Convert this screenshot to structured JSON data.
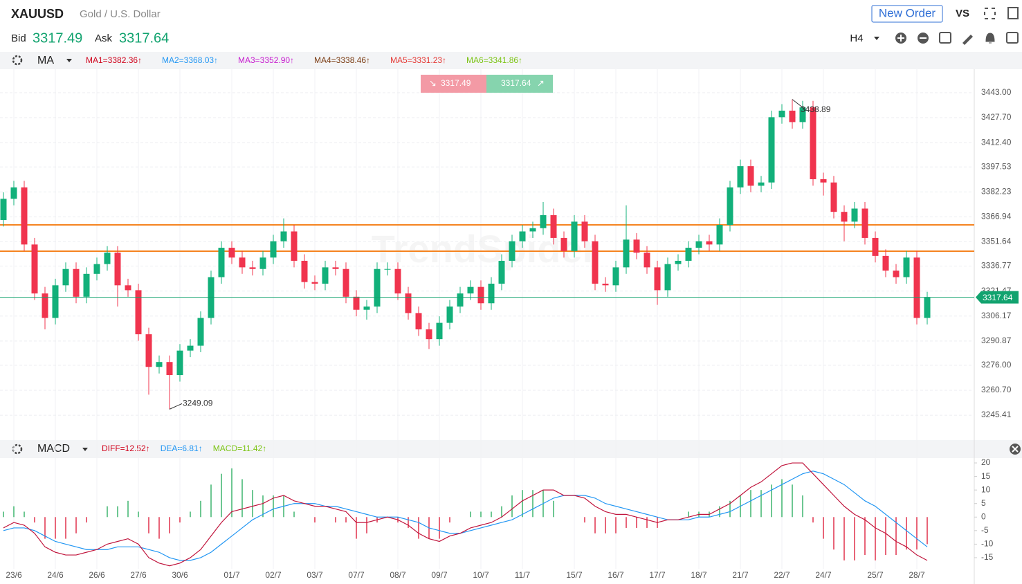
{
  "header": {
    "symbol": "XAUUSD",
    "name": "Gold / U.S. Dollar",
    "bid_label": "Bid",
    "ask_label": "Ask",
    "new_order": "New Order",
    "vs": "VS",
    "timeframe": "H4"
  },
  "chart_data": {
    "type": "candlestick",
    "watermark": "TrendSpider",
    "bid": 3317.49,
    "ask": 3317.64,
    "indicator": "MA",
    "ma_labels": [
      {
        "text": "MA1=3382.36↑",
        "color": "#d0021b"
      },
      {
        "text": "MA2=3368.03↑",
        "color": "#2196f3"
      },
      {
        "text": "MA3=3352.90↑",
        "color": "#c71ccf"
      },
      {
        "text": "MA4=3338.46↑",
        "color": "#7a3b12"
      },
      {
        "text": "MA5=3331.23↑",
        "color": "#e53935"
      },
      {
        "text": "MA6=3341.86↑",
        "color": "#7cc416"
      }
    ],
    "categories": [
      null,
      "23/6",
      null,
      null,
      null,
      "24/6",
      null,
      null,
      null,
      "26/6",
      null,
      null,
      null,
      "27/6",
      null,
      null,
      null,
      "30/6",
      null,
      null,
      null,
      null,
      "01/7",
      null,
      null,
      null,
      "02/7",
      null,
      null,
      null,
      "03/7",
      null,
      null,
      null,
      "07/7",
      null,
      null,
      null,
      "08/7",
      null,
      null,
      null,
      "09/7",
      null,
      null,
      null,
      "10/7",
      null,
      null,
      null,
      "11/7",
      null,
      null,
      null,
      null,
      "15/7",
      null,
      null,
      null,
      "16/7",
      null,
      null,
      null,
      "17/7",
      null,
      null,
      null,
      "18/7",
      null,
      null,
      null,
      "21/7",
      null,
      null,
      null,
      "22/7",
      null,
      null,
      null,
      "24/7",
      null,
      null,
      null,
      null,
      "25/7",
      null,
      null,
      null,
      "28/7",
      null
    ],
    "candles": {
      "open": [
        3365,
        3378,
        3385,
        3350,
        3320,
        3305,
        3325,
        3335,
        3318,
        3332,
        3338,
        3345,
        3325,
        3322,
        3295,
        3275,
        3278,
        3270,
        3285,
        3288,
        3305,
        3330,
        3348,
        3342,
        3336,
        3335,
        3342,
        3352,
        3358,
        3340,
        3327,
        3326,
        3336,
        3335,
        3318,
        3310,
        3312,
        3335,
        3335,
        3320,
        3308,
        3298,
        3292,
        3302,
        3312,
        3320,
        3324,
        3314,
        3326,
        3340,
        3352,
        3358,
        3360,
        3368,
        3354,
        3346,
        3364,
        3352,
        3326,
        3325,
        3336,
        3353,
        3345,
        3336,
        3322,
        3338,
        3340,
        3348,
        3352,
        3350,
        3362,
        3385,
        3398,
        3386,
        3388,
        3428,
        3432,
        3425,
        3434,
        3390,
        3388,
        3370,
        3364,
        3372,
        3354,
        3343,
        3334,
        3330,
        3342,
        3305
      ],
      "high": [
        3382,
        3389,
        3389,
        3354,
        3324,
        3329,
        3339,
        3339,
        3336,
        3342,
        3349,
        3349,
        3329,
        3326,
        3299,
        3282,
        3282,
        3289,
        3292,
        3309,
        3334,
        3352,
        3352,
        3346,
        3340,
        3346,
        3356,
        3366,
        3362,
        3344,
        3331,
        3340,
        3340,
        3339,
        3322,
        3316,
        3339,
        3339,
        3339,
        3324,
        3312,
        3302,
        3306,
        3316,
        3324,
        3328,
        3328,
        3330,
        3344,
        3356,
        3362,
        3364,
        3376,
        3372,
        3358,
        3368,
        3368,
        3356,
        3330,
        3340,
        3374,
        3357,
        3349,
        3340,
        3342,
        3344,
        3352,
        3356,
        3356,
        3366,
        3389,
        3402,
        3402,
        3392,
        3432,
        3436,
        3438.89,
        3438,
        3438,
        3394,
        3392,
        3374,
        3376,
        3376,
        3358,
        3347,
        3338,
        3346,
        3346,
        3321
      ],
      "low": [
        3361,
        3374,
        3346,
        3316,
        3298,
        3301,
        3321,
        3314,
        3314,
        3328,
        3334,
        3312,
        3318,
        3291,
        3258,
        3271,
        3249.09,
        3266,
        3281,
        3284,
        3301,
        3326,
        3338,
        3332,
        3331,
        3331,
        3338,
        3348,
        3336,
        3323,
        3322,
        3322,
        3331,
        3314,
        3306,
        3304,
        3308,
        3331,
        3316,
        3304,
        3294,
        3286,
        3288,
        3298,
        3308,
        3316,
        3310,
        3310,
        3322,
        3336,
        3348,
        3354,
        3356,
        3350,
        3342,
        3342,
        3348,
        3322,
        3321,
        3321,
        3332,
        3341,
        3332,
        3313,
        3318,
        3334,
        3336,
        3344,
        3346,
        3346,
        3358,
        3381,
        3382,
        3382,
        3384,
        3424,
        3421,
        3421,
        3386,
        3380,
        3366,
        3352,
        3360,
        3350,
        3339,
        3330,
        3326,
        3326,
        3301,
        3301
      ],
      "close": [
        3378,
        3385,
        3350,
        3320,
        3305,
        3325,
        3335,
        3318,
        3332,
        3338,
        3345,
        3325,
        3322,
        3295,
        3275,
        3278,
        3270,
        3285,
        3288,
        3305,
        3330,
        3348,
        3342,
        3336,
        3335,
        3342,
        3352,
        3358,
        3340,
        3327,
        3326,
        3336,
        3335,
        3318,
        3310,
        3312,
        3335,
        3335,
        3320,
        3308,
        3298,
        3292,
        3302,
        3312,
        3320,
        3324,
        3314,
        3326,
        3340,
        3352,
        3358,
        3360,
        3368,
        3354,
        3346,
        3364,
        3352,
        3326,
        3325,
        3336,
        3353,
        3345,
        3336,
        3322,
        3338,
        3340,
        3348,
        3352,
        3350,
        3362,
        3385,
        3398,
        3386,
        3388,
        3428,
        3432,
        3425,
        3434,
        3390,
        3388,
        3370,
        3364,
        3372,
        3354,
        3343,
        3334,
        3330,
        3342,
        3305,
        3317.64
      ]
    },
    "up_color": "#12b07a",
    "down_color": "#f0344e",
    "price_line_color": "#12a36f",
    "ylim": [
      3230.6,
      3457.4
    ],
    "yticks": [
      {
        "value": 3443,
        "label": "3443.00"
      },
      {
        "value": 3427.7,
        "label": "3427.70"
      },
      {
        "value": 3412.4,
        "label": "3412.40"
      },
      {
        "value": 3397.53,
        "label": "3397.53"
      },
      {
        "value": 3382.23,
        "label": "3382.23"
      },
      {
        "value": 3366.94,
        "label": "3366.94"
      },
      {
        "value": 3351.64,
        "label": "3351.64"
      },
      {
        "value": 3336.77,
        "label": "3336.77"
      },
      {
        "value": 3321.47,
        "label": "3321.47"
      },
      {
        "value": 3306.17,
        "label": "3306.17"
      },
      {
        "value": 3290.87,
        "label": "3290.87"
      },
      {
        "value": 3276,
        "label": "3276.00"
      },
      {
        "value": 3260.7,
        "label": "3260.70"
      },
      {
        "value": 3245.41,
        "label": "3245.41"
      }
    ],
    "levels": [
      3362,
      3345.9
    ],
    "level_color": "#f5831f",
    "grid": true
  },
  "macd": {
    "type": "macd",
    "name": "MACD",
    "labels": [
      {
        "text": "DIFF=12.52↑",
        "color": "#d0021b"
      },
      {
        "text": "DEA=6.81↑",
        "color": "#2196f3"
      },
      {
        "text": "MACD=11.42↑",
        "color": "#7cc416"
      }
    ],
    "diff": {
      "color": "#c0143c",
      "values": [
        -4,
        -2,
        -3,
        -6,
        -11,
        -13,
        -14,
        -14,
        -13,
        -12,
        -10,
        -9,
        -8,
        -10,
        -15,
        -17,
        -18,
        -17,
        -15,
        -12,
        -7,
        -2,
        2,
        3,
        4,
        5,
        7,
        8,
        6,
        5,
        4,
        4,
        3,
        2,
        -2,
        -2,
        -1,
        0,
        -1,
        -3,
        -6,
        -8,
        -9,
        -7,
        -6,
        -4,
        -3,
        -2,
        0,
        3,
        6,
        8,
        10,
        10,
        8,
        8,
        7,
        4,
        2,
        1,
        1,
        0,
        -1,
        -2,
        -1,
        -1,
        0,
        1,
        1,
        3,
        5,
        8,
        11,
        13,
        16,
        19,
        20,
        20,
        16,
        12,
        8,
        4,
        1,
        -1,
        -4,
        -6,
        -9,
        -11,
        -14,
        -16
      ]
    },
    "dea": {
      "color": "#2196f3",
      "values": [
        -5,
        -4,
        -4,
        -5,
        -7,
        -9,
        -10,
        -11,
        -12,
        -12,
        -12,
        -11,
        -11,
        -11,
        -12,
        -13,
        -15,
        -16,
        -16,
        -15,
        -13,
        -10,
        -7,
        -4,
        -1,
        1,
        3,
        4,
        5,
        5,
        5,
        4,
        4,
        3,
        2,
        1,
        0,
        0,
        0,
        -1,
        -2,
        -4,
        -5,
        -6,
        -6,
        -5,
        -4,
        -3,
        -2,
        -1,
        1,
        3,
        5,
        7,
        8,
        8,
        8,
        7,
        5,
        4,
        3,
        2,
        1,
        0,
        -1,
        -1,
        -1,
        0,
        0,
        1,
        2,
        4,
        6,
        8,
        10,
        12,
        14,
        16,
        17,
        16,
        14,
        12,
        9,
        6,
        4,
        1,
        -2,
        -5,
        -8,
        -11
      ]
    },
    "hist": {
      "up_color": "#3cb46e",
      "down_color": "#e0304a",
      "values": [
        2,
        4,
        2,
        -2,
        -8,
        -8,
        -8,
        -6,
        -2,
        0,
        4,
        4,
        6,
        2,
        -6,
        -8,
        -6,
        -2,
        2,
        6,
        12,
        16,
        18,
        14,
        10,
        8,
        8,
        8,
        2,
        0,
        -2,
        0,
        -2,
        -2,
        -8,
        -6,
        -2,
        0,
        -2,
        -4,
        -8,
        -8,
        -8,
        -2,
        0,
        2,
        2,
        2,
        4,
        8,
        10,
        10,
        10,
        6,
        0,
        0,
        -2,
        -6,
        -6,
        -6,
        -4,
        -4,
        -4,
        -4,
        0,
        0,
        2,
        2,
        2,
        4,
        6,
        8,
        10,
        10,
        12,
        14,
        12,
        8,
        -2,
        -8,
        -12,
        -16,
        -16,
        -14,
        -16,
        -14,
        -14,
        -12,
        -12,
        -10
      ]
    },
    "ylim": [
      -19.1,
      21.8
    ],
    "yticks": [
      20,
      15,
      10,
      5,
      0,
      -5,
      -10,
      -15
    ]
  }
}
